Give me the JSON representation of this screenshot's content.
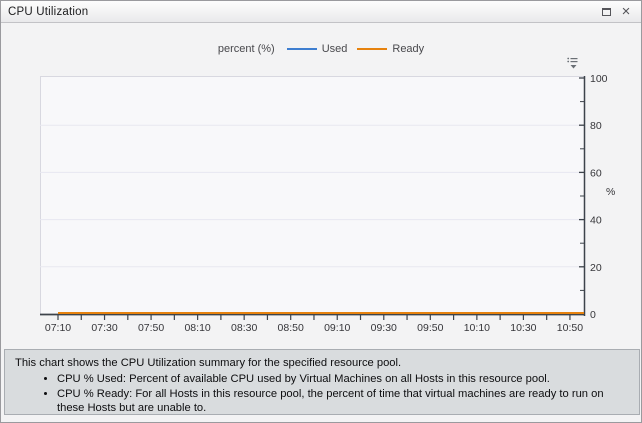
{
  "titlebar": {
    "title": "CPU Utilization",
    "maximize_icon": "maximize-restore",
    "close_glyph": "×"
  },
  "legend": {
    "axis_title": "percent (%)"
  },
  "chart_menu_icon": "chart-options-list-dropdown",
  "chart_data": {
    "type": "line",
    "title": "CPU Utilization",
    "xlabel": "",
    "ylabel": "%",
    "ylim": [
      0,
      100
    ],
    "y_major_ticks": [
      0,
      20,
      40,
      60,
      80,
      100
    ],
    "y_minor_ticks": [
      10,
      30,
      50,
      70,
      90
    ],
    "x_labels": [
      "07:10",
      "07:30",
      "07:50",
      "08:10",
      "08:30",
      "08:50",
      "09:10",
      "09:30",
      "09:50",
      "10:10",
      "10:30",
      "10:50"
    ],
    "x_minor_tick_every_minutes": 10,
    "grid": "horizontal-only",
    "legend_position": "top",
    "axis_color": "#3d434b",
    "grid_color": "#e7e7f0",
    "plot_bg_color": "#f8f8fa",
    "series": [
      {
        "name": "Used",
        "color": "#3e7ed0",
        "values": [
          0,
          0,
          0,
          0,
          0,
          0,
          0,
          0,
          0,
          0,
          0,
          0
        ]
      },
      {
        "name": "Ready",
        "color": "#e6820e",
        "values": [
          0,
          0,
          0,
          0,
          0,
          0,
          0,
          0,
          0,
          0,
          0,
          0
        ]
      }
    ]
  },
  "description": {
    "intro": "This chart shows the CPU Utilization summary for the specified resource pool.",
    "bullets": [
      "CPU % Used: Percent of available CPU used by Virtual Machines on all Hosts in this resource pool.",
      "CPU % Ready: For all Hosts in this resource pool, the percent of time that virtual machines are ready to run on these Hosts but are unable to."
    ]
  }
}
